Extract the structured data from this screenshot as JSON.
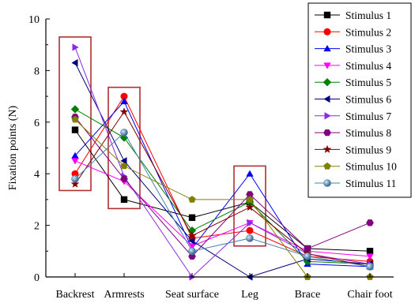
{
  "chart_data": {
    "type": "line",
    "ylabel": "Fixation points (N)",
    "xlabel": "",
    "ylim": [
      0,
      10
    ],
    "yticks": [
      0,
      2,
      4,
      6,
      8,
      10
    ],
    "categories": [
      "Backrest",
      "Armrests",
      "Seat surface",
      "Leg",
      "Brace",
      "Chair foot"
    ],
    "legend_position": "right",
    "highlight_boxes": [
      {
        "category": "Backrest",
        "y_range": [
          3.35,
          9.3
        ]
      },
      {
        "category": "Armrests",
        "y_range": [
          2.65,
          7.35
        ]
      },
      {
        "category": "Leg",
        "y_range": [
          1.2,
          4.3
        ]
      }
    ],
    "series": [
      {
        "name": "Stimulus 1",
        "color": "#000000",
        "marker": "square",
        "values": [
          5.7,
          3.0,
          2.3,
          2.9,
          1.1,
          1.0
        ]
      },
      {
        "name": "Stimulus 2",
        "color": "#ff0000",
        "marker": "circle",
        "values": [
          4.0,
          7.0,
          1.5,
          1.8,
          0.8,
          0.6
        ]
      },
      {
        "name": "Stimulus 3",
        "color": "#0000ff",
        "marker": "triangle-up",
        "values": [
          4.7,
          6.8,
          1.1,
          4.0,
          0.5,
          0.4
        ]
      },
      {
        "name": "Stimulus 4",
        "color": "#ff00ff",
        "marker": "triangle-down",
        "values": [
          4.5,
          3.7,
          1.2,
          2.1,
          1.0,
          0.8
        ]
      },
      {
        "name": "Stimulus 5",
        "color": "#008000",
        "marker": "diamond",
        "values": [
          6.5,
          5.4,
          1.8,
          2.9,
          0.6,
          0.5
        ]
      },
      {
        "name": "Stimulus 6",
        "color": "#000080",
        "marker": "triangle-left",
        "values": [
          8.3,
          4.5,
          1.4,
          0.0,
          0.7,
          0.5
        ]
      },
      {
        "name": "Stimulus 7",
        "color": "#8a2be2",
        "marker": "triangle-right",
        "values": [
          8.9,
          3.9,
          0.0,
          2.1,
          0.9,
          0.5
        ]
      },
      {
        "name": "Stimulus 8",
        "color": "#800080",
        "marker": "hexagon",
        "values": [
          6.2,
          3.8,
          0.8,
          3.2,
          1.1,
          2.1
        ]
      },
      {
        "name": "Stimulus 9",
        "color": "#800000",
        "marker": "star",
        "values": [
          3.6,
          6.4,
          1.6,
          2.7,
          0.9,
          0.4
        ]
      },
      {
        "name": "Stimulus 10",
        "color": "#808000",
        "marker": "pentagon",
        "values": [
          6.1,
          4.3,
          3.0,
          3.0,
          0.0,
          0.0
        ]
      },
      {
        "name": "Stimulus 11",
        "color": "#4682b4",
        "marker": "sphere",
        "values": [
          3.8,
          5.6,
          1.0,
          1.5,
          0.8,
          0.4
        ]
      }
    ]
  }
}
